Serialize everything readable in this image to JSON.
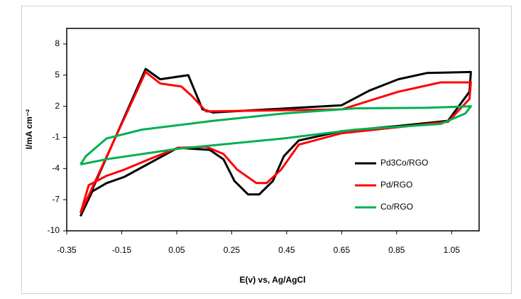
{
  "chart_data": {
    "type": "line",
    "x_label": "E(v) vs, Ag/AgCl",
    "y_label": "I/mA cm⁻²",
    "xlim": [
      -0.35,
      1.15
    ],
    "xticks": [
      -0.35,
      -0.15,
      0.05,
      0.25,
      0.45,
      0.65,
      0.85,
      1.05
    ],
    "ylim": [
      -10,
      9.5
    ],
    "yticks": [
      -10,
      -7,
      -4,
      -1,
      2,
      5,
      8
    ],
    "grid": false,
    "legend": "right",
    "series": [
      {
        "name": "Pd3Co/RGO",
        "color": "#000000",
        "x": [
          -0.3,
          -0.063,
          -0.01,
          0.092,
          0.144,
          0.183,
          0.65,
          0.75,
          0.856,
          0.96,
          1.12,
          1.115,
          1.037,
          0.856,
          0.65,
          0.494,
          0.44,
          0.4,
          0.35,
          0.31,
          0.26,
          0.22,
          0.17,
          0.054,
          -0.05,
          -0.14,
          -0.205,
          -0.257,
          -0.3
        ],
        "values": [
          -8.6,
          5.6,
          4.6,
          5.0,
          1.7,
          1.4,
          2.1,
          3.5,
          4.6,
          5.2,
          5.3,
          3.4,
          0.6,
          0.1,
          -0.4,
          -1.3,
          -2.8,
          -5.2,
          -6.5,
          -6.5,
          -5.2,
          -3.1,
          -2.2,
          -2.0,
          -3.5,
          -4.8,
          -5.4,
          -6.2,
          -8.6
        ]
      },
      {
        "name": "Pd/RGO",
        "color": "#ff0000",
        "x": [
          -0.3,
          -0.063,
          -0.01,
          0.067,
          0.105,
          0.157,
          0.65,
          0.856,
          1.01,
          1.12,
          1.115,
          1.037,
          0.65,
          0.494,
          0.43,
          0.377,
          0.34,
          0.27,
          0.22,
          0.157,
          0.054,
          -0.05,
          -0.14,
          -0.205,
          -0.27,
          -0.3
        ],
        "values": [
          -8.3,
          5.3,
          4.2,
          3.9,
          3.0,
          1.5,
          1.7,
          3.4,
          4.3,
          4.3,
          2.7,
          0.5,
          -0.6,
          -1.7,
          -4.1,
          -5.4,
          -5.4,
          -4.1,
          -2.6,
          -1.9,
          -2.0,
          -3.1,
          -4.1,
          -4.7,
          -5.6,
          -8.3
        ]
      },
      {
        "name": "Co/RGO",
        "color": "#00b050",
        "x": [
          -0.3,
          -0.28,
          -0.205,
          -0.076,
          0.183,
          0.44,
          0.7,
          0.96,
          1.12,
          1.1,
          1.01,
          0.7,
          0.44,
          0.054,
          -0.205,
          -0.3
        ],
        "values": [
          -3.6,
          -2.8,
          -1.1,
          -0.25,
          0.6,
          1.3,
          1.8,
          1.85,
          2.0,
          1.3,
          0.3,
          -0.25,
          -1.1,
          -2.1,
          -3.1,
          -3.6
        ]
      }
    ]
  }
}
